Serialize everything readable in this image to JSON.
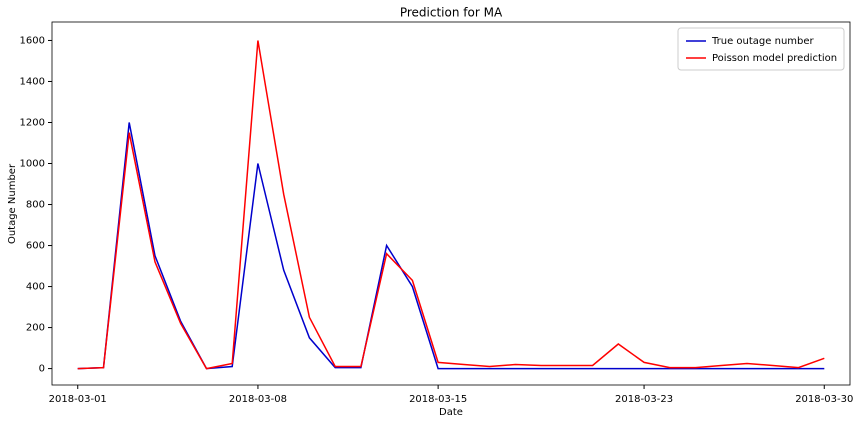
{
  "chart_data": {
    "type": "line",
    "title": "Prediction for MA",
    "x_label": "Date",
    "y_label": "Outage Number",
    "x": [
      "2018-03-01",
      "2018-03-02",
      "2018-03-03",
      "2018-03-04",
      "2018-03-05",
      "2018-03-06",
      "2018-03-07",
      "2018-03-08",
      "2018-03-09",
      "2018-03-10",
      "2018-03-11",
      "2018-03-12",
      "2018-03-13",
      "2018-03-14",
      "2018-03-15",
      "2018-03-16",
      "2018-03-17",
      "2018-03-18",
      "2018-03-19",
      "2018-03-20",
      "2018-03-21",
      "2018-03-22",
      "2018-03-23",
      "2018-03-24",
      "2018-03-25",
      "2018-03-26",
      "2018-03-27",
      "2018-03-28",
      "2018-03-29",
      "2018-03-30"
    ],
    "series": [
      {
        "name": "True outage number",
        "color": "#0000cc",
        "values": [
          0,
          5,
          1200,
          550,
          230,
          0,
          10,
          1000,
          480,
          150,
          5,
          5,
          600,
          400,
          0,
          0,
          0,
          0,
          0,
          0,
          0,
          0,
          0,
          0,
          0,
          0,
          0,
          0,
          0,
          0
        ]
      },
      {
        "name": "Poisson model prediction",
        "color": "#ff0000",
        "values": [
          0,
          5,
          1150,
          520,
          220,
          0,
          25,
          1600,
          850,
          250,
          10,
          10,
          560,
          430,
          30,
          20,
          10,
          20,
          15,
          15,
          15,
          120,
          30,
          5,
          5,
          15,
          25,
          15,
          5,
          50
        ]
      }
    ],
    "xlim": [
      "2018-02-28",
      "2018-03-31"
    ],
    "xticks": [
      "2018-03-01",
      "2018-03-08",
      "2018-03-15",
      "2018-03-23",
      "2018-03-30"
    ],
    "ylim": [
      -80,
      1690
    ],
    "yticks": [
      0,
      200,
      400,
      600,
      800,
      1000,
      1200,
      1400,
      1600
    ],
    "legend": "upper right",
    "grid": false
  }
}
